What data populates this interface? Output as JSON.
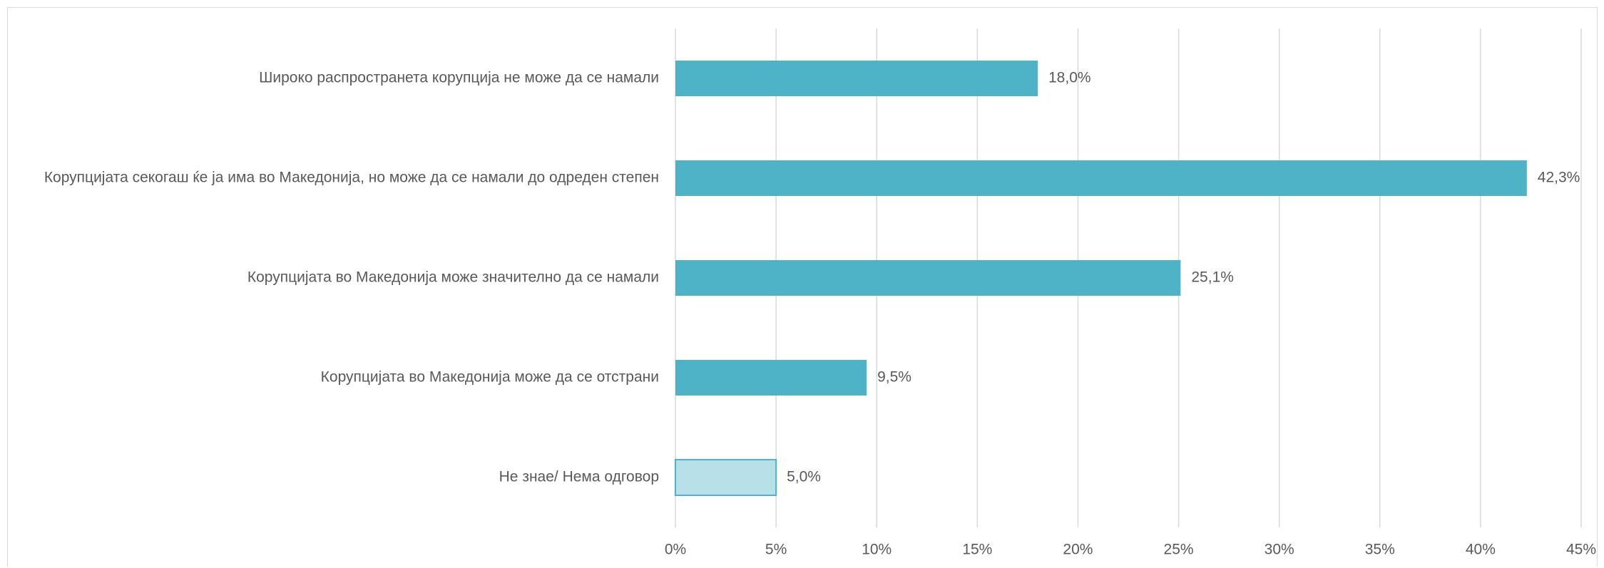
{
  "chart_data": {
    "type": "bar",
    "orientation": "horizontal",
    "categories": [
      "Широко распространета корупција не може да се намали",
      "Корупцијата секогаш ќе ја има во Македонија, но може да се намали до одреден степен",
      "Корупцијата во Македонија може значително да се намали",
      "Корупцијата во Македонија може да се отстрани",
      "Не знае/ Нема одговор"
    ],
    "values": [
      18.0,
      42.3,
      25.1,
      9.5,
      5.0
    ],
    "value_labels": [
      "18,0%",
      "42,3%",
      "25,1%",
      "9,5%",
      "5,0%"
    ],
    "xlim": [
      0,
      45
    ],
    "xticks": [
      0,
      5,
      10,
      15,
      20,
      25,
      30,
      35,
      40,
      45
    ],
    "xtick_labels": [
      "0%",
      "5%",
      "10%",
      "15%",
      "20%",
      "25%",
      "30%",
      "35%",
      "40%",
      "45%"
    ],
    "grid": "vertical",
    "title": "",
    "xlabel": "",
    "ylabel": "",
    "colors": {
      "bar": "#4fb3c8",
      "bar_highlight": "#b8e0e8",
      "bar_highlight_border": "#4fb3c8",
      "grid": "#d9d9d9",
      "text": "#595959"
    },
    "highlight_index": 4
  }
}
